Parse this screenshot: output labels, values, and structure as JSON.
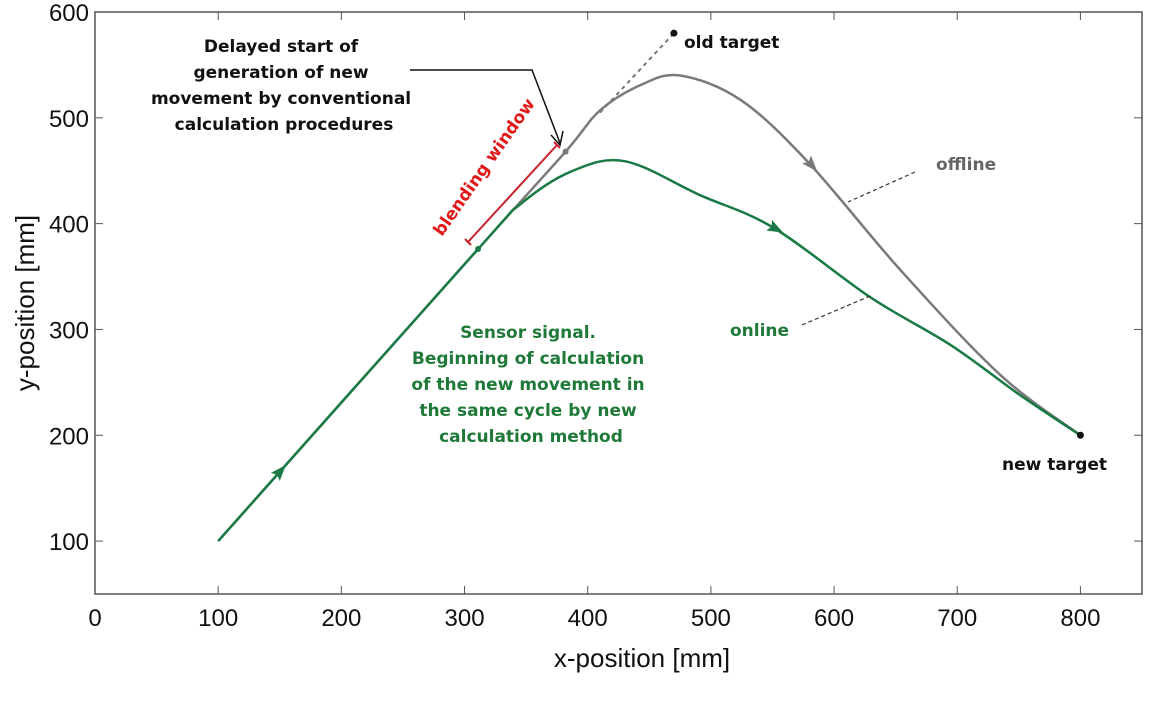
{
  "chart_data": {
    "type": "line",
    "title": "",
    "xlabel": "x-position [mm]",
    "ylabel": "y-position [mm]",
    "xlim": [
      0,
      850
    ],
    "ylim": [
      50,
      600
    ],
    "xticks": [
      0,
      100,
      200,
      300,
      400,
      500,
      600,
      700,
      800
    ],
    "yticks": [
      100,
      200,
      300,
      400,
      500,
      600
    ],
    "grid": false,
    "series": [
      {
        "name": "offline",
        "color": "#7a7a7a",
        "x": [
          100,
          311,
          382,
          410,
          443,
          475,
          524,
          579,
          654,
          735,
          800
        ],
        "y": [
          100,
          376,
          468,
          507,
          531,
          540,
          517,
          458,
          356,
          257,
          200
        ]
      },
      {
        "name": "online",
        "color": "#1a7a45",
        "x": [
          100,
          311,
          345,
          386,
          430,
          491,
          551,
          630,
          695,
          751,
          800
        ],
        "y": [
          100,
          376,
          418,
          449,
          459,
          427,
          396,
          330,
          285,
          238,
          200
        ]
      },
      {
        "name": "old target path",
        "color": "#777777",
        "style": "dotted",
        "x": [
          410,
          470
        ],
        "y": [
          505,
          580
        ]
      }
    ],
    "points": [
      {
        "label": "old target",
        "x": 470,
        "y": 580
      },
      {
        "label": "new target",
        "x": 800,
        "y": 200
      },
      {
        "label": "sensor signal point",
        "x": 311,
        "y": 376
      },
      {
        "label": "delayed start point",
        "x": 382,
        "y": 468
      }
    ],
    "annotations": {
      "delayed": [
        "Delayed start of",
        "generation of new",
        "movement by conventional",
        "calculation procedures"
      ],
      "blending": "blending window",
      "sensor": [
        "Sensor signal.",
        "Beginning of calculation",
        "of the new movement in",
        "the same cycle by new",
        "calculation method"
      ],
      "offline": "offline",
      "online": "online",
      "old_target": "old target",
      "new_target": "new target"
    }
  }
}
